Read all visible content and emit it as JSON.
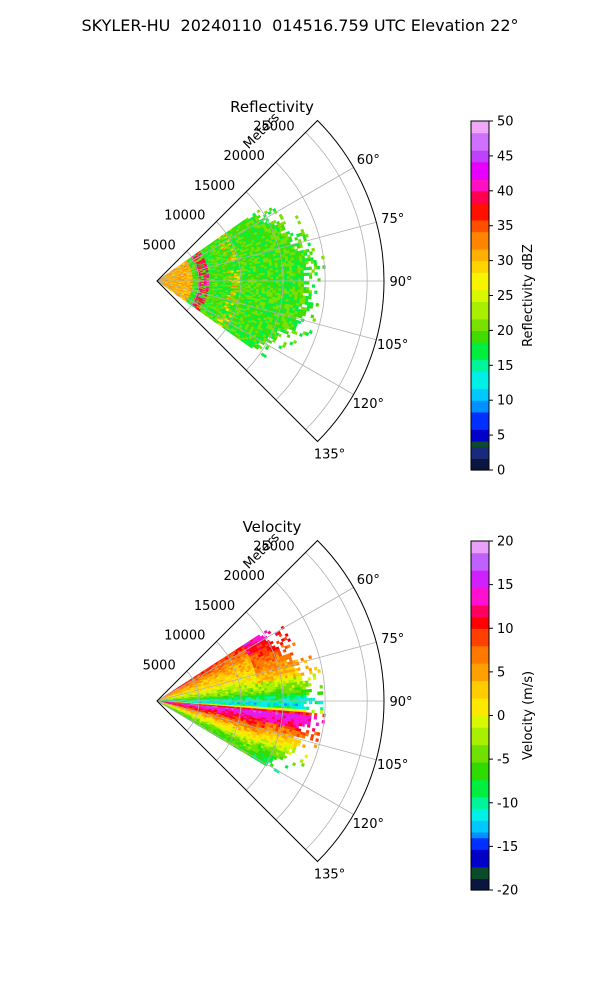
{
  "figure": {
    "title": "SKYLER-HU  20240110  014516.759 UTC Elevation 22°"
  },
  "chart_data": [
    {
      "type": "heatmap",
      "projection": "polar-sector",
      "title": "Reflectivity",
      "range_label": "Meters",
      "range_ticks": [
        5000,
        10000,
        15000,
        20000,
        25000
      ],
      "range_tick_labels": [
        "5000",
        "10000",
        "15000",
        "20000",
        "25000"
      ],
      "rmax": 27000,
      "theta_range_deg": [
        45,
        135
      ],
      "theta_ticks_deg": [
        60,
        75,
        90,
        105,
        120,
        135
      ],
      "theta_tick_labels": [
        "60°",
        "75°",
        "90°",
        "105°",
        "120°",
        "135°"
      ],
      "grid": true,
      "data_extent": {
        "rmax_approx": 18000,
        "theta_deg": [
          55,
          125
        ]
      },
      "colorbar": {
        "label": "Reflectivity dBZ",
        "range": [
          0,
          50
        ],
        "ticks": [
          0,
          5,
          10,
          15,
          20,
          25,
          30,
          35,
          40,
          45,
          50
        ],
        "tick_labels": [
          "0",
          "5",
          "10",
          "15",
          "20",
          "25",
          "30",
          "35",
          "40",
          "45",
          "50"
        ]
      },
      "observed_features": {
        "background_dbz": 19,
        "near_range_dbz": 31,
        "ring_dbz": 39,
        "ring_range_m": 5500
      }
    },
    {
      "type": "heatmap",
      "projection": "polar-sector",
      "title": "Velocity",
      "range_label": "Meters",
      "range_ticks": [
        5000,
        10000,
        15000,
        20000,
        25000
      ],
      "range_tick_labels": [
        "5000",
        "10000",
        "15000",
        "20000",
        "25000"
      ],
      "rmax": 27000,
      "theta_range_deg": [
        45,
        135
      ],
      "theta_ticks_deg": [
        60,
        75,
        90,
        105,
        120,
        135
      ],
      "theta_tick_labels": [
        "60°",
        "75°",
        "90°",
        "105°",
        "120°",
        "135°"
      ],
      "grid": true,
      "data_extent": {
        "rmax_approx": 18000,
        "theta_deg": [
          57,
          120
        ]
      },
      "colorbar": {
        "label": "Velocity (m/s)",
        "range": [
          -20,
          20
        ],
        "ticks": [
          -20,
          -15,
          -10,
          -5,
          0,
          5,
          10,
          15,
          20
        ],
        "tick_labels": [
          "-20",
          "-15",
          "-10",
          "-5",
          "0",
          "5",
          "10",
          "15",
          "20"
        ]
      },
      "observed_features": {
        "azimuth_profile_deg": [
          57,
          65,
          75,
          85,
          88,
          92,
          95,
          100,
          108,
          115,
          120
        ],
        "azimuth_profile_ms": [
          10,
          5,
          1,
          -4,
          -9,
          -12,
          16,
          12,
          3,
          -4,
          -6
        ]
      }
    }
  ]
}
